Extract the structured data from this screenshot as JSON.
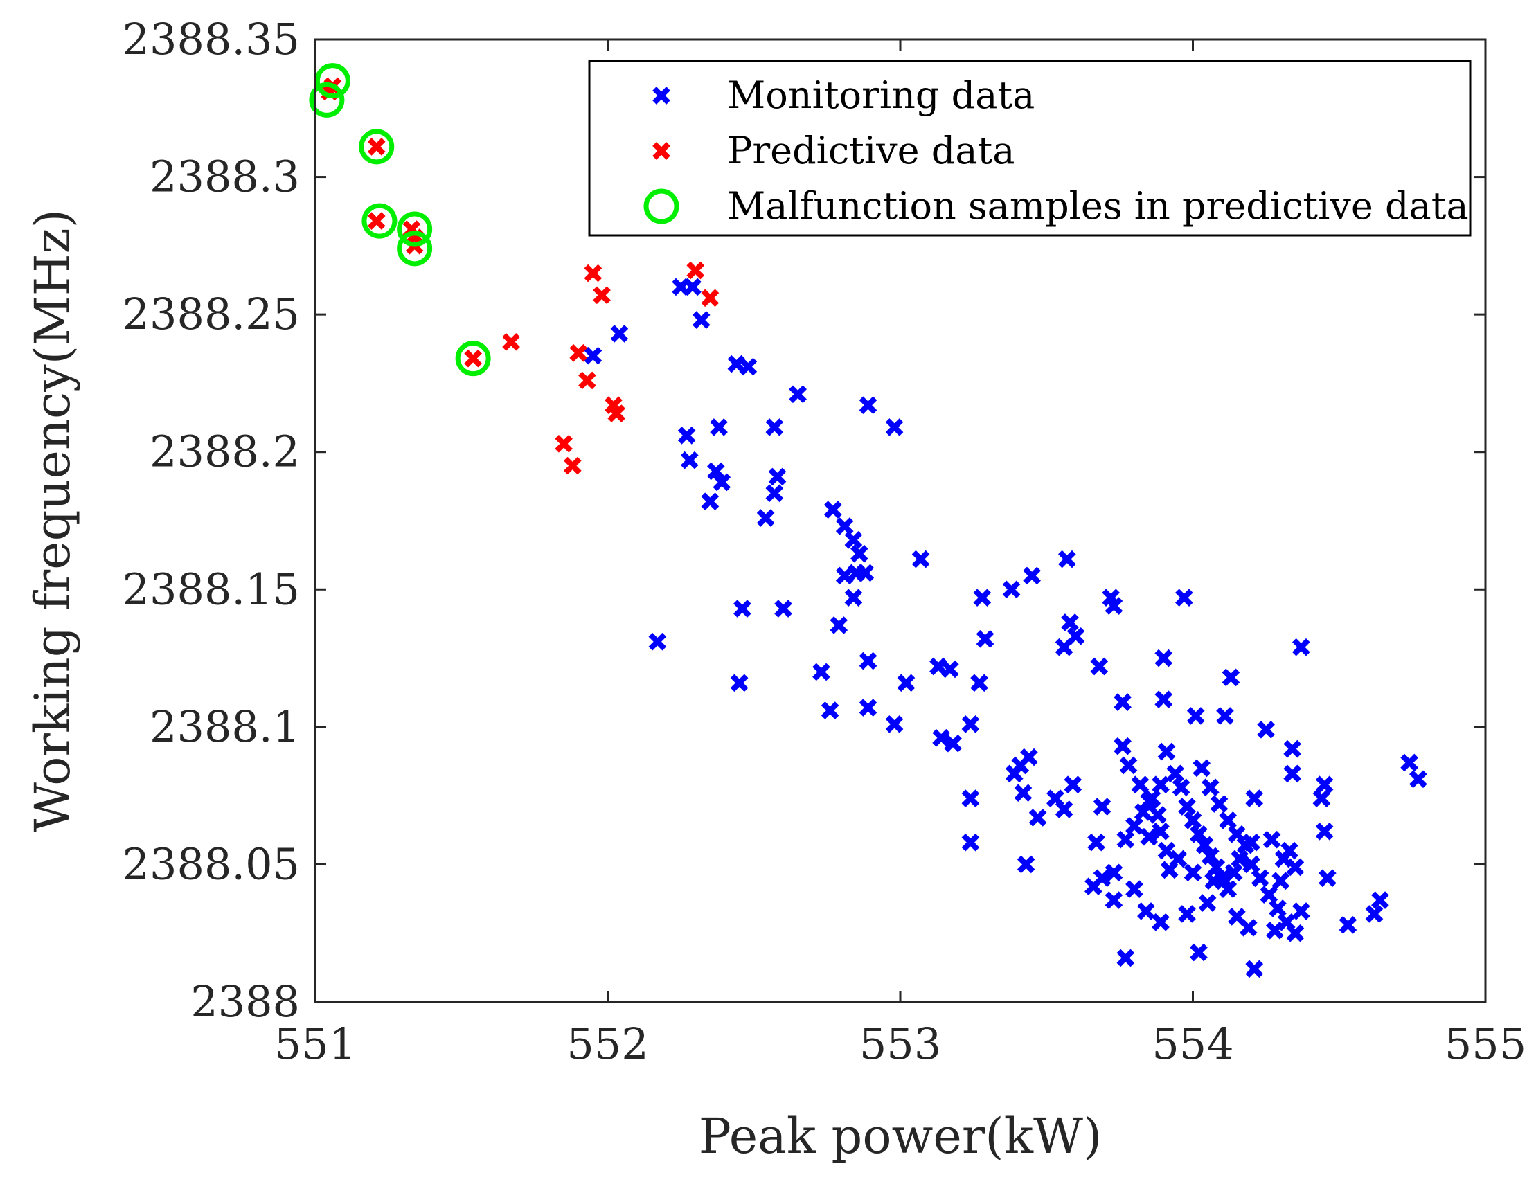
{
  "chart_data": {
    "type": "scatter",
    "title": "",
    "xlabel": "Peak power(kW)",
    "ylabel": "Working frequency(MHz)",
    "xlim": [
      551,
      555
    ],
    "ylim": [
      2388,
      2388.35
    ],
    "x_ticks": [
      551,
      552,
      553,
      554,
      555
    ],
    "x_tick_labels": [
      "551",
      "552",
      "553",
      "554",
      "555"
    ],
    "y_ticks": [
      2388,
      2388.05,
      2388.1,
      2388.15,
      2388.2,
      2388.25,
      2388.3,
      2388.35
    ],
    "y_tick_labels": [
      "2388",
      "2388.05",
      "2388.1",
      "2388.15",
      "2388.2",
      "2388.25",
      "2388.3",
      "2388.35"
    ],
    "grid": false,
    "legend_position": "top-right",
    "series": [
      {
        "name": "Monitoring data",
        "marker": "x",
        "color": "#0000ff",
        "points": [
          [
            551.95,
            2388.235
          ],
          [
            552.04,
            2388.243
          ],
          [
            552.25,
            2388.26
          ],
          [
            552.29,
            2388.26
          ],
          [
            552.32,
            2388.248
          ],
          [
            552.44,
            2388.232
          ],
          [
            552.48,
            2388.231
          ],
          [
            552.65,
            2388.221
          ],
          [
            552.89,
            2388.217
          ],
          [
            552.98,
            2388.209
          ],
          [
            552.27,
            2388.206
          ],
          [
            552.28,
            2388.197
          ],
          [
            552.38,
            2388.209
          ],
          [
            552.57,
            2388.209
          ],
          [
            552.35,
            2388.182
          ],
          [
            552.37,
            2388.193
          ],
          [
            552.39,
            2388.189
          ],
          [
            552.54,
            2388.176
          ],
          [
            552.57,
            2388.185
          ],
          [
            552.58,
            2388.191
          ],
          [
            552.77,
            2388.179
          ],
          [
            552.81,
            2388.173
          ],
          [
            552.84,
            2388.168
          ],
          [
            552.86,
            2388.163
          ],
          [
            552.85,
            2388.156
          ],
          [
            552.81,
            2388.155
          ],
          [
            552.88,
            2388.156
          ],
          [
            552.84,
            2388.147
          ],
          [
            552.79,
            2388.137
          ],
          [
            553.07,
            2388.161
          ],
          [
            552.46,
            2388.143
          ],
          [
            552.6,
            2388.143
          ],
          [
            552.17,
            2388.131
          ],
          [
            552.45,
            2388.116
          ],
          [
            552.73,
            2388.12
          ],
          [
            552.76,
            2388.106
          ],
          [
            552.89,
            2388.124
          ],
          [
            552.89,
            2388.107
          ],
          [
            553.02,
            2388.116
          ],
          [
            552.98,
            2388.101
          ],
          [
            553.13,
            2388.122
          ],
          [
            553.17,
            2388.121
          ],
          [
            553.27,
            2388.116
          ],
          [
            553.28,
            2388.147
          ],
          [
            553.29,
            2388.132
          ],
          [
            553.38,
            2388.15
          ],
          [
            553.45,
            2388.155
          ],
          [
            553.57,
            2388.161
          ],
          [
            553.58,
            2388.138
          ],
          [
            553.56,
            2388.129
          ],
          [
            553.6,
            2388.133
          ],
          [
            553.68,
            2388.122
          ],
          [
            553.72,
            2388.147
          ],
          [
            553.73,
            2388.144
          ],
          [
            553.14,
            2388.096
          ],
          [
            553.18,
            2388.094
          ],
          [
            553.24,
            2388.101
          ],
          [
            553.24,
            2388.074
          ],
          [
            553.24,
            2388.058
          ],
          [
            553.39,
            2388.083
          ],
          [
            553.41,
            2388.086
          ],
          [
            553.44,
            2388.089
          ],
          [
            553.42,
            2388.076
          ],
          [
            553.47,
            2388.067
          ],
          [
            553.53,
            2388.074
          ],
          [
            553.56,
            2388.07
          ],
          [
            553.59,
            2388.079
          ],
          [
            553.69,
            2388.071
          ],
          [
            553.43,
            2388.05
          ],
          [
            553.67,
            2388.058
          ],
          [
            553.66,
            2388.042
          ],
          [
            553.69,
            2388.045
          ],
          [
            553.73,
            2388.047
          ],
          [
            553.76,
            2388.109
          ],
          [
            553.76,
            2388.093
          ],
          [
            553.78,
            2388.086
          ],
          [
            553.82,
            2388.079
          ],
          [
            553.85,
            2388.073
          ],
          [
            553.88,
            2388.068
          ],
          [
            553.89,
            2388.062
          ],
          [
            553.91,
            2388.055
          ],
          [
            553.92,
            2388.048
          ],
          [
            553.94,
            2388.083
          ],
          [
            553.96,
            2388.078
          ],
          [
            553.98,
            2388.071
          ],
          [
            554.0,
            2388.066
          ],
          [
            554.02,
            2388.061
          ],
          [
            554.04,
            2388.057
          ],
          [
            554.06,
            2388.053
          ],
          [
            554.08,
            2388.049
          ],
          [
            554.1,
            2388.045
          ],
          [
            554.12,
            2388.041
          ],
          [
            554.14,
            2388.047
          ],
          [
            554.16,
            2388.052
          ],
          [
            553.77,
            2388.059
          ],
          [
            553.8,
            2388.064
          ],
          [
            553.83,
            2388.069
          ],
          [
            553.86,
            2388.074
          ],
          [
            553.89,
            2388.079
          ],
          [
            553.91,
            2388.091
          ],
          [
            553.9,
            2388.125
          ],
          [
            553.9,
            2388.11
          ],
          [
            553.97,
            2388.147
          ],
          [
            554.01,
            2388.104
          ],
          [
            554.13,
            2388.118
          ],
          [
            554.11,
            2388.104
          ],
          [
            554.25,
            2388.099
          ],
          [
            554.37,
            2388.129
          ],
          [
            554.03,
            2388.085
          ],
          [
            554.06,
            2388.078
          ],
          [
            554.09,
            2388.072
          ],
          [
            554.12,
            2388.066
          ],
          [
            554.15,
            2388.061
          ],
          [
            554.18,
            2388.057
          ],
          [
            554.21,
            2388.074
          ],
          [
            554.2,
            2388.05
          ],
          [
            554.23,
            2388.045
          ],
          [
            554.26,
            2388.039
          ],
          [
            554.29,
            2388.034
          ],
          [
            554.32,
            2388.029
          ],
          [
            554.34,
            2388.092
          ],
          [
            554.34,
            2388.083
          ],
          [
            554.44,
            2388.074
          ],
          [
            554.45,
            2388.079
          ],
          [
            554.45,
            2388.062
          ],
          [
            554.46,
            2388.045
          ],
          [
            554.33,
            2388.055
          ],
          [
            554.35,
            2388.049
          ],
          [
            554.37,
            2388.033
          ],
          [
            554.35,
            2388.025
          ],
          [
            554.53,
            2388.028
          ],
          [
            554.62,
            2388.032
          ],
          [
            554.64,
            2388.037
          ],
          [
            554.74,
            2388.087
          ],
          [
            554.77,
            2388.081
          ],
          [
            553.77,
            2388.016
          ],
          [
            554.02,
            2388.018
          ],
          [
            554.21,
            2388.012
          ],
          [
            553.73,
            2388.037
          ],
          [
            553.8,
            2388.041
          ],
          [
            553.84,
            2388.033
          ],
          [
            553.89,
            2388.029
          ],
          [
            553.98,
            2388.032
          ],
          [
            554.05,
            2388.036
          ],
          [
            554.15,
            2388.031
          ],
          [
            554.19,
            2388.027
          ],
          [
            554.28,
            2388.026
          ],
          [
            553.85,
            2388.06
          ],
          [
            553.95,
            2388.052
          ],
          [
            554.0,
            2388.047
          ],
          [
            554.07,
            2388.044
          ],
          [
            554.2,
            2388.058
          ],
          [
            554.27,
            2388.059
          ],
          [
            554.31,
            2388.052
          ],
          [
            554.3,
            2388.044
          ]
        ]
      },
      {
        "name": "Predictive data",
        "marker": "x",
        "color": "#ff0000",
        "points": [
          [
            551.06,
            2388.333
          ],
          [
            551.05,
            2388.331
          ],
          [
            551.21,
            2388.311
          ],
          [
            551.21,
            2388.284
          ],
          [
            551.33,
            2388.281
          ],
          [
            551.34,
            2388.278
          ],
          [
            551.34,
            2388.275
          ],
          [
            551.54,
            2388.234
          ],
          [
            551.67,
            2388.24
          ],
          [
            551.95,
            2388.265
          ],
          [
            551.98,
            2388.257
          ],
          [
            552.3,
            2388.266
          ],
          [
            552.35,
            2388.256
          ],
          [
            551.9,
            2388.236
          ],
          [
            551.93,
            2388.226
          ],
          [
            552.02,
            2388.217
          ],
          [
            552.03,
            2388.214
          ],
          [
            551.85,
            2388.203
          ],
          [
            551.88,
            2388.195
          ]
        ]
      },
      {
        "name": "Malfunction samples in predictive data",
        "marker": "o",
        "color": "#00ee00",
        "points": [
          [
            551.06,
            2388.335
          ],
          [
            551.04,
            2388.328
          ],
          [
            551.21,
            2388.311
          ],
          [
            551.22,
            2388.284
          ],
          [
            551.34,
            2388.281
          ],
          [
            551.34,
            2388.274
          ],
          [
            551.54,
            2388.234
          ]
        ]
      }
    ]
  }
}
